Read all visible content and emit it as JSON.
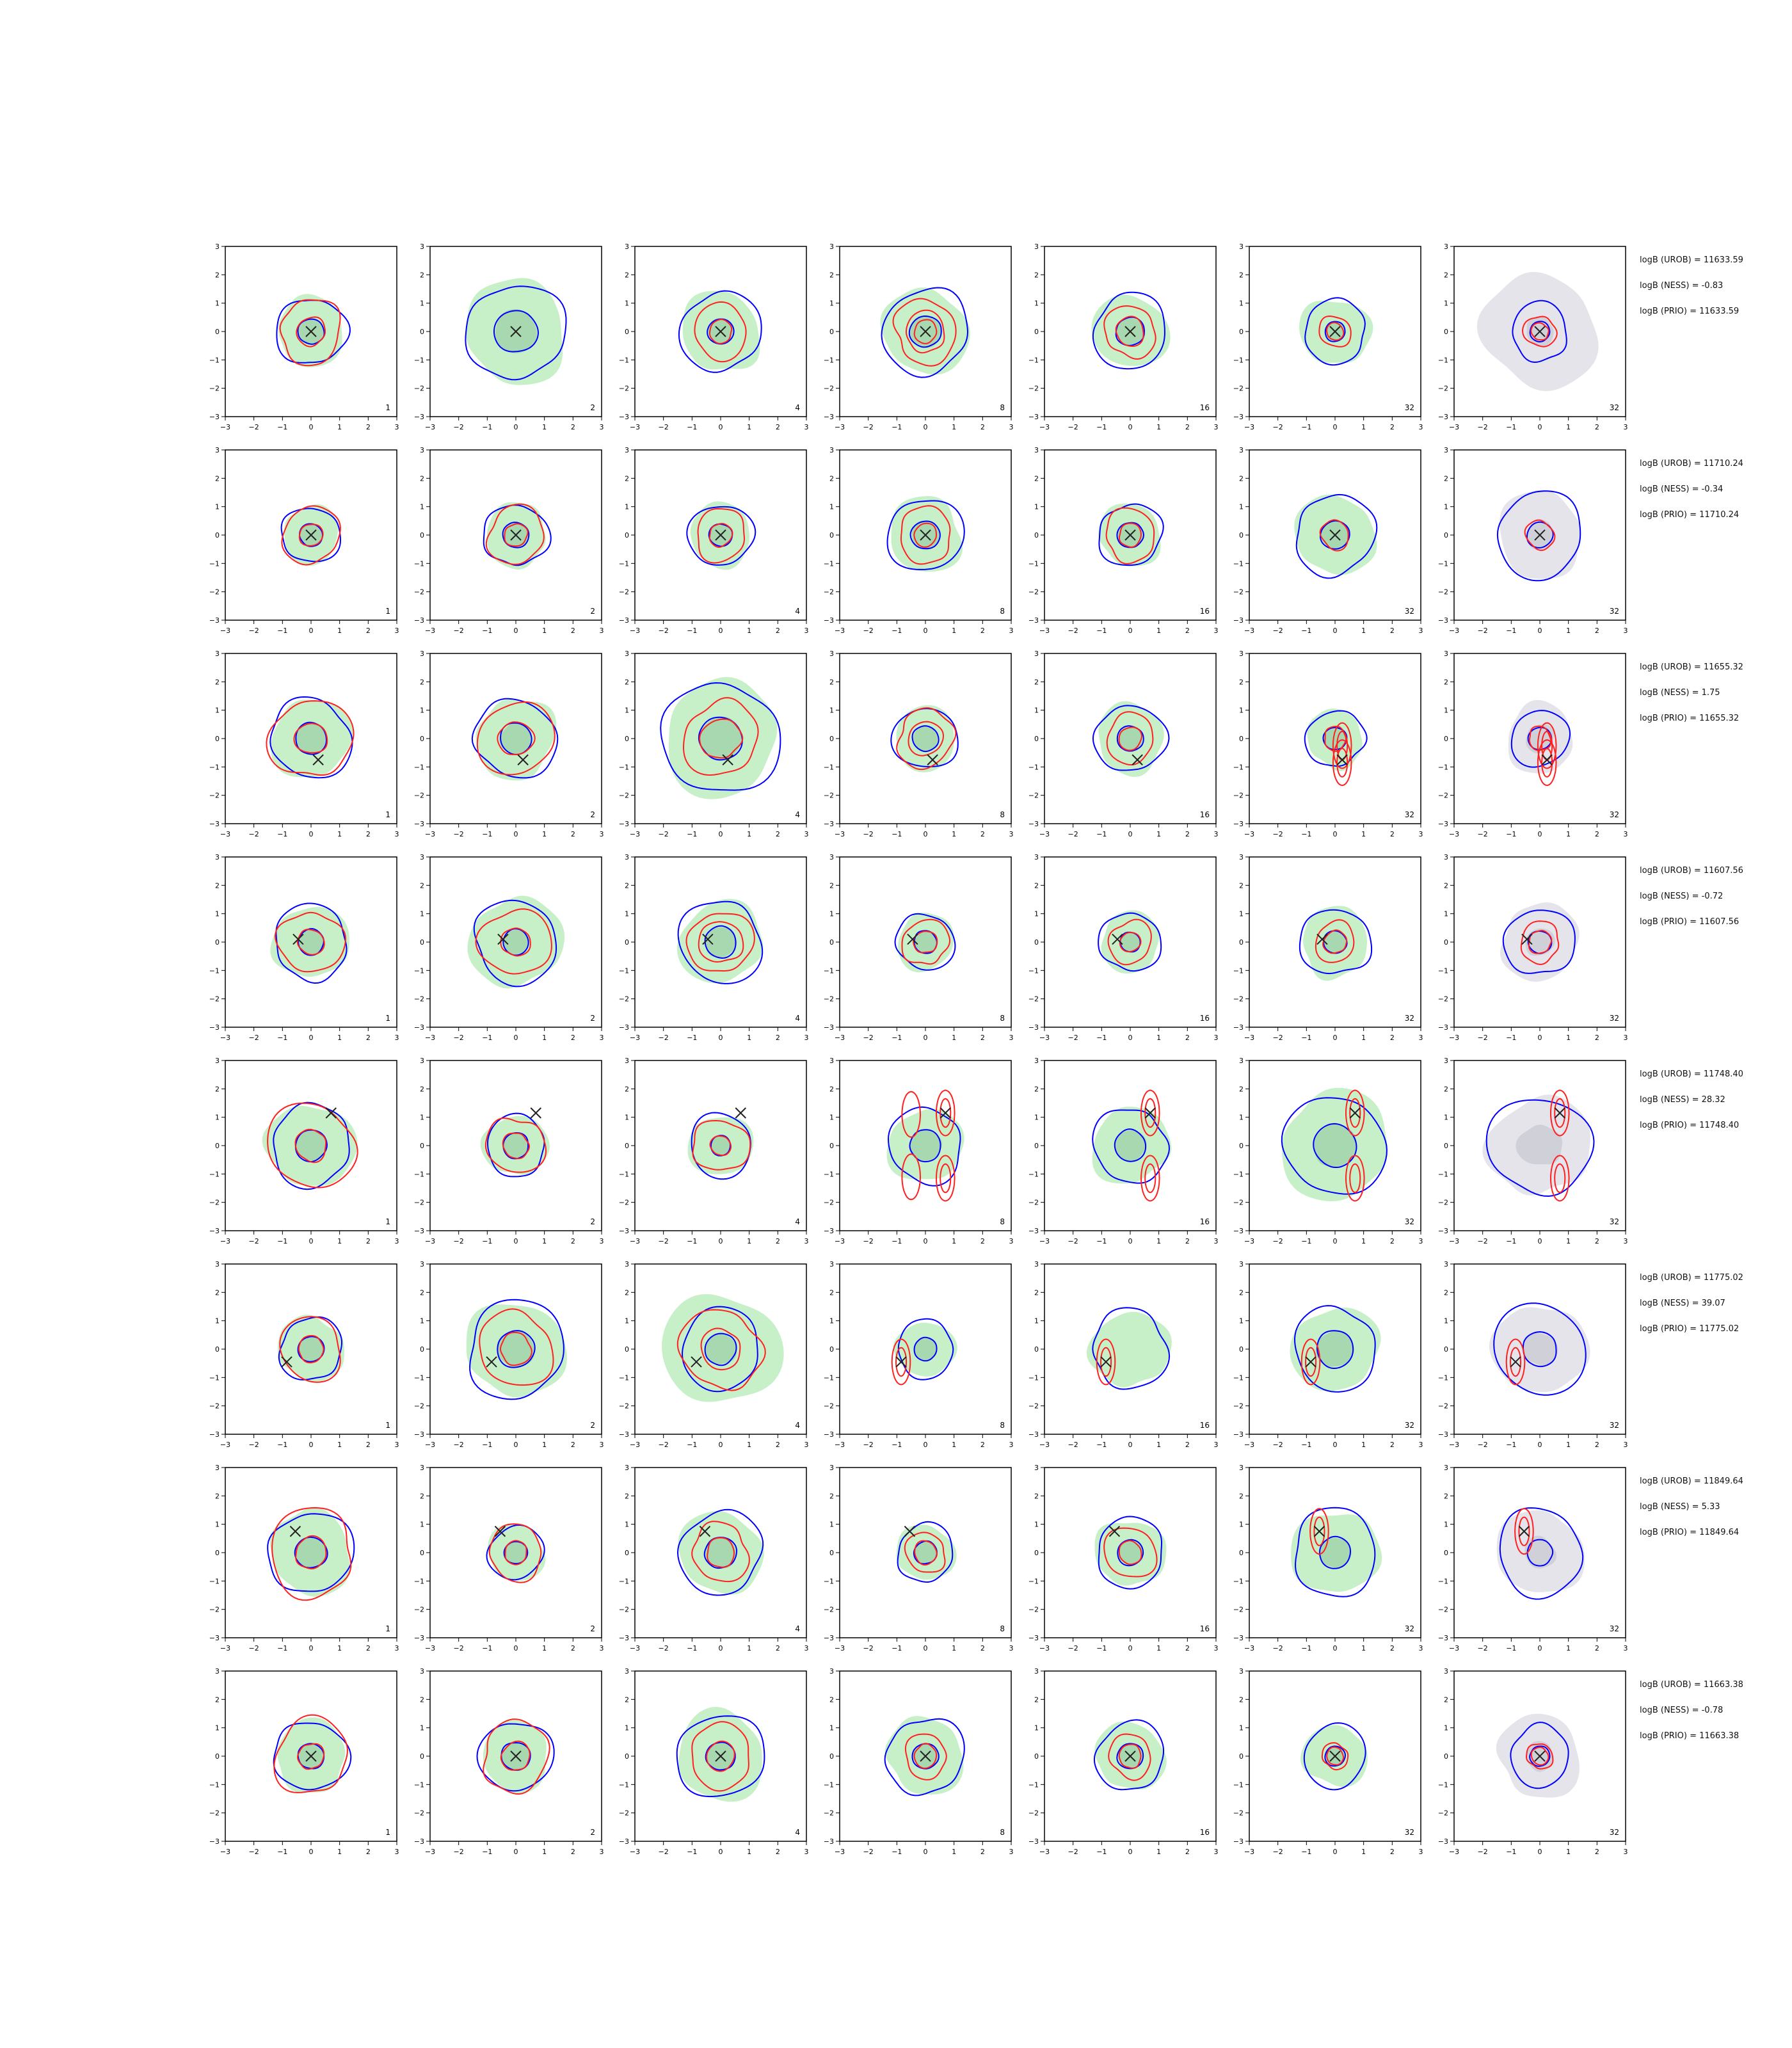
{
  "chart_data": {
    "type": "contour",
    "layout": {
      "rows": 8,
      "cols": 7
    },
    "axes": {
      "xlim": [
        -3,
        3
      ],
      "ylim": [
        -3,
        3
      ],
      "xticks": [
        "−3",
        "−2",
        "−1",
        "0",
        "1",
        "2",
        "3"
      ],
      "yticks": [
        "−3",
        "−2",
        "−1",
        "0",
        "1",
        "2",
        "3"
      ]
    },
    "panel_numbers": [
      "1",
      "2",
      "4",
      "8",
      "16",
      "32",
      "32"
    ],
    "colors": {
      "blue": "#0000ff",
      "red": "#ff2020",
      "green_fill": "#c8f0c8",
      "green_dark": "#a8d8b0",
      "grey_fill": "#e4e4ea",
      "grey_dark": "#d0d0d8",
      "marker": "#222222"
    },
    "rows": [
      {
        "marker": [
          0,
          0
        ],
        "annotations": [
          "logB (UROB) = 11633.59",
          "logB (NESS) = -0.83",
          "logB (PRIO) = 11633.59"
        ],
        "panels": [
          {
            "green": [
              1.2
            ],
            "blue": [
              1.2,
              0.45
            ],
            "red": [
              1.1,
              0.5
            ]
          },
          {
            "green": [
              1.8
            ],
            "blue": [
              1.7,
              0.75
            ],
            "red": []
          },
          {
            "green": [
              1.4
            ],
            "blue": [
              1.4,
              0.45
            ],
            "red": [
              0.95,
              0.4
            ]
          },
          {
            "green": [
              1.5
            ],
            "blue": [
              1.5,
              0.55
            ],
            "red": [
              1.1,
              0.7,
              0.4
            ]
          },
          {
            "green": [
              1.3
            ],
            "blue": [
              1.3,
              0.5
            ],
            "red": [
              0.9,
              0.5
            ]
          },
          {
            "green": [
              1.2
            ],
            "blue": [
              1.1,
              0.35
            ],
            "red": [
              0.55,
              0.3
            ]
          },
          {
            "grey": [
              2.0,
              0.5
            ],
            "blue": [
              1.0,
              0.35
            ],
            "red": [
              0.55,
              0.3
            ]
          }
        ]
      },
      {
        "marker": [
          0,
          0
        ],
        "annotations": [
          "logB (UROB) = 11710.24",
          "logB (NESS) = -0.34",
          "logB (PRIO) = 11710.24"
        ],
        "panels": [
          {
            "green": [
              1.0
            ],
            "blue": [
              1.0,
              0.4
            ],
            "red": [
              1.0,
              0.4
            ]
          },
          {
            "green": [
              1.1
            ],
            "blue": [
              1.1,
              0.45
            ],
            "red": [
              1.0,
              0.4
            ]
          },
          {
            "green": [
              1.1
            ],
            "blue": [
              1.1,
              0.4
            ],
            "red": [
              0.9,
              0.4
            ]
          },
          {
            "green": [
              1.3
            ],
            "blue": [
              1.3,
              0.5
            ],
            "red": [
              0.95,
              0.4
            ]
          },
          {
            "green": [
              1.1
            ],
            "blue": [
              1.1,
              0.45
            ],
            "red": [
              0.9,
              0.4
            ]
          },
          {
            "green": [
              1.4
            ],
            "blue": [
              1.4,
              0.5
            ],
            "red": [
              0.5
            ]
          },
          {
            "grey": [
              1.5,
              0.5
            ],
            "blue": [
              1.5,
              0.45
            ],
            "red": [
              0.5
            ]
          }
        ]
      },
      {
        "marker": [
          0.25,
          -0.75
        ],
        "annotations": [
          "logB (UROB) = 11655.32",
          "logB (NESS) = 1.75",
          "logB (PRIO) = 11655.32"
        ],
        "panels": [
          {
            "green": [
              1.4
            ],
            "blue": [
              1.4,
              0.55
            ],
            "red": [
              1.4,
              0.55
            ]
          },
          {
            "green": [
              1.4
            ],
            "blue": [
              1.4,
              0.55
            ],
            "red": [
              1.3,
              0.6
            ]
          },
          {
            "green": [
              2.0
            ],
            "blue": [
              2.0,
              0.75
            ],
            "red": [
              1.3,
              0.7
            ]
          },
          {
            "green": [
              1.1
            ],
            "blue": [
              1.1,
              0.45
            ],
            "red": [
              1.0,
              0.6
            ]
          },
          {
            "green": [
              1.2
            ],
            "blue": [
              1.2,
              0.45
            ],
            "red": [
              0.85,
              0.4
            ]
          },
          {
            "green": [
              1.0
            ],
            "blue": [
              1.0,
              0.4
            ],
            "red": [
              0.4
            ]
          },
          {
            "grey": [
              1.2,
              0.5
            ],
            "blue": [
              1.0,
              0.4
            ],
            "red": [
              0.4
            ]
          }
        ]
      },
      {
        "marker": [
          -0.45,
          0.1
        ],
        "annotations": [
          "logB (UROB) = 11607.56",
          "logB (NESS) = -0.72",
          "logB (PRIO) = 11607.56"
        ],
        "panels": [
          {
            "green": [
              1.3
            ],
            "blue": [
              1.3,
              0.45
            ],
            "red": [
              1.1,
              0.45
            ]
          },
          {
            "green": [
              1.6
            ],
            "blue": [
              1.45,
              0.45
            ],
            "red": [
              1.2,
              0.5
            ]
          },
          {
            "green": [
              1.45
            ],
            "blue": [
              1.45,
              0.55
            ],
            "red": [
              1.1,
              0.75
            ]
          },
          {
            "green": [
              1.0
            ],
            "blue": [
              1.0,
              0.4
            ],
            "red": [
              0.8,
              0.4
            ]
          },
          {
            "green": [
              1.05
            ],
            "blue": [
              1.05,
              0.35
            ],
            "red": [
              0.75,
              0.35
            ]
          },
          {
            "green": [
              1.2
            ],
            "blue": [
              1.2,
              0.4
            ],
            "red": [
              0.7,
              0.4
            ]
          },
          {
            "grey": [
              1.35,
              0.5
            ],
            "blue": [
              1.2,
              0.4
            ],
            "red": [
              0.7,
              0.4
            ]
          }
        ]
      },
      {
        "marker": [
          0.7,
          1.15
        ],
        "annotations": [
          "logB (UROB) = 11748.40",
          "logB (NESS) = 28.32",
          "logB (PRIO) = 11748.40"
        ],
        "panels": [
          {
            "green": [
              1.5
            ],
            "blue": [
              1.4,
              0.55
            ],
            "red": [
              1.5,
              0.55
            ]
          },
          {
            "green": [
              1.1
            ],
            "blue": [
              1.05,
              0.45
            ],
            "red": [
              1.0,
              0.45
            ]
          },
          {
            "green": [
              1.1
            ],
            "blue": [
              1.1,
              0.35
            ],
            "red": [
              0.95,
              0.35
            ]
          },
          {
            "green": [
              1.3
            ],
            "blue": [
              1.3,
              0.55
            ],
            "red": []
          },
          {
            "green": [
              1.35
            ],
            "blue": [
              1.3,
              0.55
            ],
            "red": []
          },
          {
            "green": [
              1.9
            ],
            "blue": [
              1.75,
              0.75
            ],
            "red": []
          },
          {
            "grey": [
              1.75,
              0.75
            ],
            "blue": [
              1.75
            ],
            "red": []
          }
        ]
      },
      {
        "marker": [
          -0.85,
          -0.45
        ],
        "annotations": [
          "logB (UROB) = 11775.02",
          "logB (NESS) = 39.07",
          "logB (PRIO) = 11775.02"
        ],
        "panels": [
          {
            "green": [
              1.15
            ],
            "blue": [
              1.1,
              0.45
            ],
            "red": [
              1.1,
              0.45
            ]
          },
          {
            "green": [
              1.7
            ],
            "blue": [
              1.7,
              0.65
            ],
            "red": [
              1.3,
              0.55
            ]
          },
          {
            "green": [
              2.0
            ],
            "blue": [
              1.4,
              0.55
            ],
            "red": [
              1.4,
              0.7
            ]
          },
          {
            "green": [
              1.0
            ],
            "blue": [
              1.0,
              0.4
            ],
            "red": []
          },
          {
            "green": [
              1.35
            ],
            "blue": [
              1.35
            ],
            "red": []
          },
          {
            "green": [
              1.5
            ],
            "blue": [
              1.45,
              0.65
            ],
            "red": []
          },
          {
            "grey": [
              1.6,
              0.6
            ],
            "blue": [
              1.6,
              0.6
            ],
            "red": []
          }
        ]
      },
      {
        "marker": [
          -0.55,
          0.75
        ],
        "annotations": [
          "logB (UROB) = 11849.64",
          "logB (NESS) = 5.33",
          "logB (PRIO) = 11849.64"
        ],
        "panels": [
          {
            "green": [
              1.45
            ],
            "blue": [
              1.45,
              0.55
            ],
            "red": [
              1.5,
              0.55
            ]
          },
          {
            "green": [
              1.0
            ],
            "blue": [
              0.95,
              0.4
            ],
            "red": [
              0.95,
              0.4
            ]
          },
          {
            "green": [
              1.45
            ],
            "blue": [
              1.45,
              0.55
            ],
            "red": [
              1.0,
              0.5
            ]
          },
          {
            "green": [
              1.0
            ],
            "blue": [
              1.0,
              0.4
            ],
            "red": [
              0.7,
              0.4
            ]
          },
          {
            "green": [
              1.2
            ],
            "blue": [
              1.2,
              0.45
            ],
            "red": [
              0.9,
              0.4
            ]
          },
          {
            "green": [
              1.5
            ],
            "blue": [
              1.5,
              0.55
            ],
            "red": []
          },
          {
            "grey": [
              1.5,
              0.55
            ],
            "blue": [
              1.5,
              0.45
            ],
            "red": []
          }
        ]
      },
      {
        "marker": [
          0,
          0
        ],
        "annotations": [
          "logB (UROB) = 11663.38",
          "logB (NESS) = -0.78",
          "logB (PRIO) = 11663.38"
        ],
        "panels": [
          {
            "green": [
              1.25
            ],
            "blue": [
              1.25,
              0.45
            ],
            "red": [
              1.3,
              0.45
            ]
          },
          {
            "green": [
              1.2
            ],
            "blue": [
              1.25,
              0.5
            ],
            "red": [
              1.2,
              0.5
            ]
          },
          {
            "green": [
              1.55
            ],
            "blue": [
              1.5,
              0.5
            ],
            "red": [
              1.1,
              0.5
            ]
          },
          {
            "green": [
              1.35
            ],
            "blue": [
              1.35,
              0.45
            ],
            "red": [
              0.75,
              0.4
            ]
          },
          {
            "green": [
              1.2
            ],
            "blue": [
              1.2,
              0.45
            ],
            "red": [
              0.75,
              0.4
            ]
          },
          {
            "green": [
              1.1
            ],
            "blue": [
              1.1,
              0.35
            ],
            "red": [
              0.45,
              0.3
            ]
          },
          {
            "grey": [
              1.45,
              0.5
            ],
            "blue": [
              1.05,
              0.35
            ],
            "red": [
              0.45,
              0.3
            ]
          }
        ]
      }
    ]
  }
}
